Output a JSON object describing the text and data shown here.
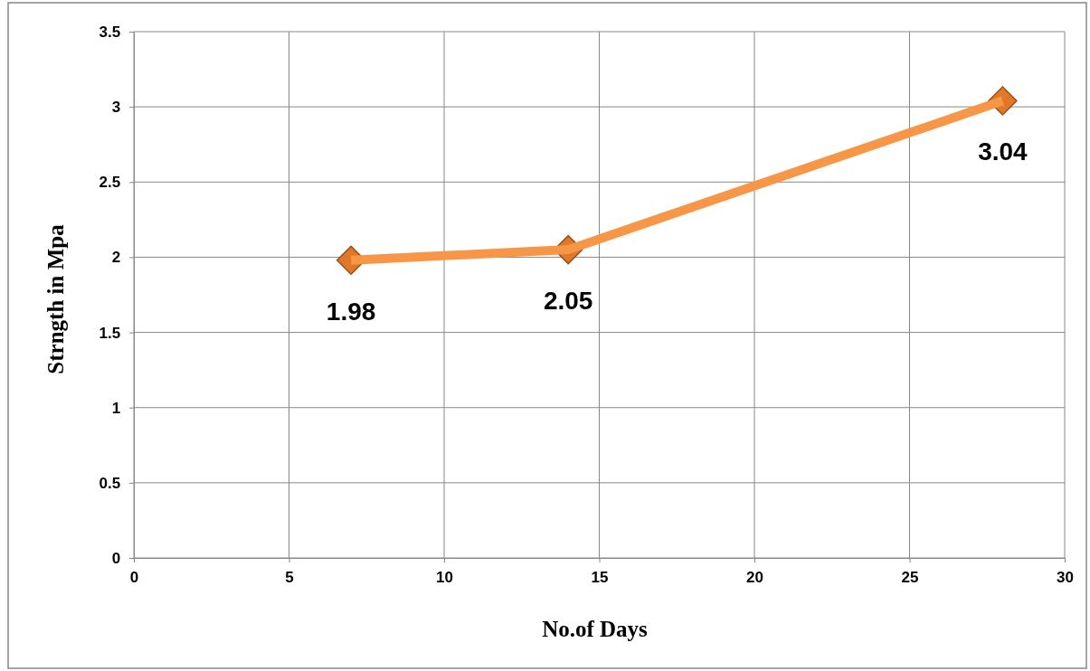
{
  "chart_data": {
    "type": "line",
    "xlabel": "No.of Days",
    "ylabel": "Strngth in Mpa",
    "x": [
      7,
      14,
      28
    ],
    "series": [
      {
        "color": "#f79646",
        "values": [
          1.98,
          2.05,
          3.04
        ]
      }
    ],
    "xlim": [
      0,
      30
    ],
    "xticks": [
      0,
      5,
      10,
      15,
      20,
      25,
      30
    ],
    "ylim": [
      0,
      3.5
    ],
    "yticks": [
      0,
      {
        "value": 0.5,
        "label": "0.5"
      },
      1,
      {
        "value": 1.5,
        "label": "1.5"
      },
      2,
      {
        "value": 2.5,
        "label": "2.5"
      },
      3,
      {
        "value": 3.5,
        "label": "3.5"
      }
    ],
    "grid": true,
    "marker": "diamond",
    "line_style": "solid",
    "data_labels": true
  }
}
